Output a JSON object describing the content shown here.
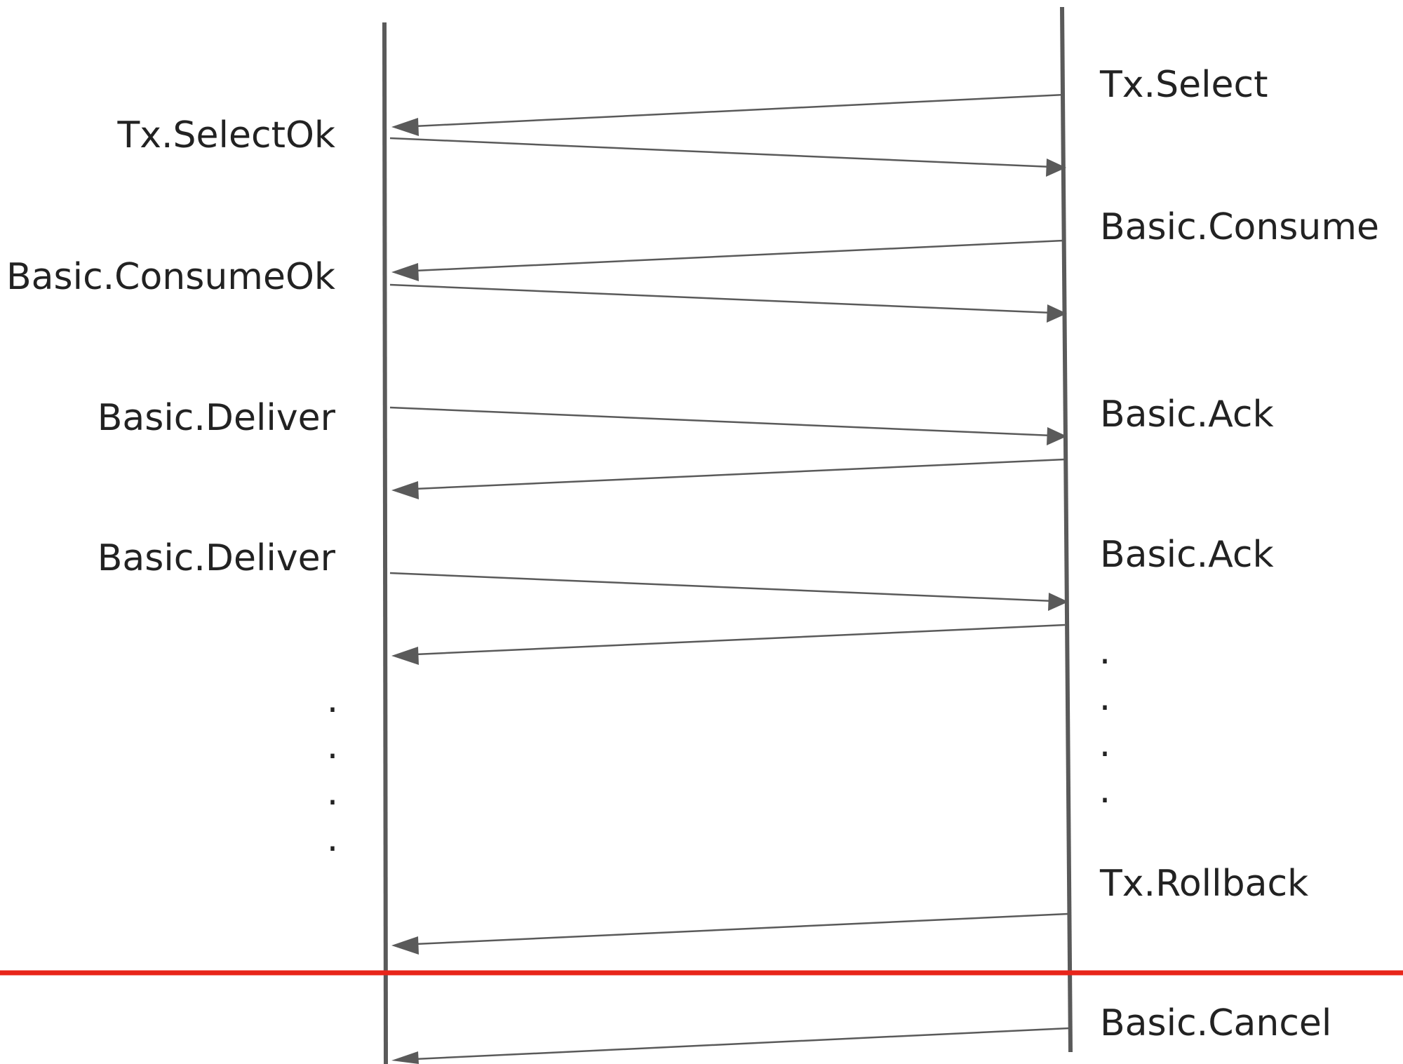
{
  "colors": {
    "line": "#5a5a5a",
    "text": "#222222",
    "divider": "#e8251a",
    "background": "#ffffff"
  },
  "left_labels": [
    "Tx.SelectOk",
    "Basic.ConsumeOk",
    "Basic.Deliver",
    "Basic.Deliver"
  ],
  "right_labels": [
    "Tx.Select",
    "Basic.Consume",
    "Basic.Ack",
    "Basic.Ack",
    "Tx.Rollback",
    "Basic.Cancel"
  ],
  "ellipsis_dot": "."
}
